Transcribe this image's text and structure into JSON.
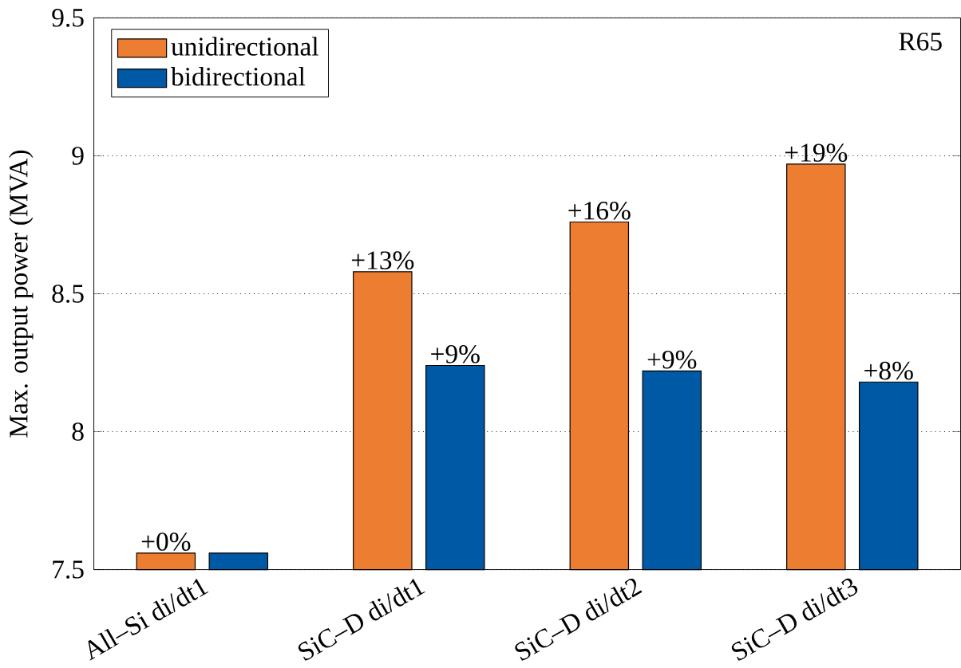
{
  "chart_data": {
    "type": "bar",
    "ylabel": "Max. output power (MVA)",
    "categories": [
      "All–Si di/dt1",
      "SiC–D di/dt1",
      "SiC–D di/dt2",
      "SiC–D di/dt3"
    ],
    "series": [
      {
        "name": "unidirectional",
        "color": "#ed7d31",
        "values": [
          7.56,
          8.58,
          8.76,
          8.97
        ]
      },
      {
        "name": "bidirectional",
        "color": "#0059a5",
        "values": [
          7.56,
          8.24,
          8.22,
          8.18
        ]
      }
    ],
    "ylim": [
      7.5,
      9.5
    ],
    "yticks": [
      7.5,
      8,
      8.5,
      9,
      9.5
    ],
    "grid": "y",
    "legend": "top left",
    "annotations": [
      "R65",
      {
        "text": "+0%",
        "x": "All–Si di/dt1",
        "y": 7.56
      },
      {
        "text": "+13%",
        "x": "SiC–D di/dt1",
        "y": 8.58
      },
      {
        "text": "+9%",
        "x": "SiC–D di/dt1",
        "y": 8.24
      },
      {
        "text": "+16%",
        "x": "SiC–D di/dt2",
        "y": 8.76
      },
      {
        "text": "+9%",
        "x": "SiC–D di/dt2",
        "y": 8.22
      },
      {
        "text": "+19%",
        "x": "SiC–D di/dt3",
        "y": 8.97
      },
      {
        "text": "+8%",
        "x": "SiC–D di/dt3",
        "y": 8.18
      }
    ]
  }
}
